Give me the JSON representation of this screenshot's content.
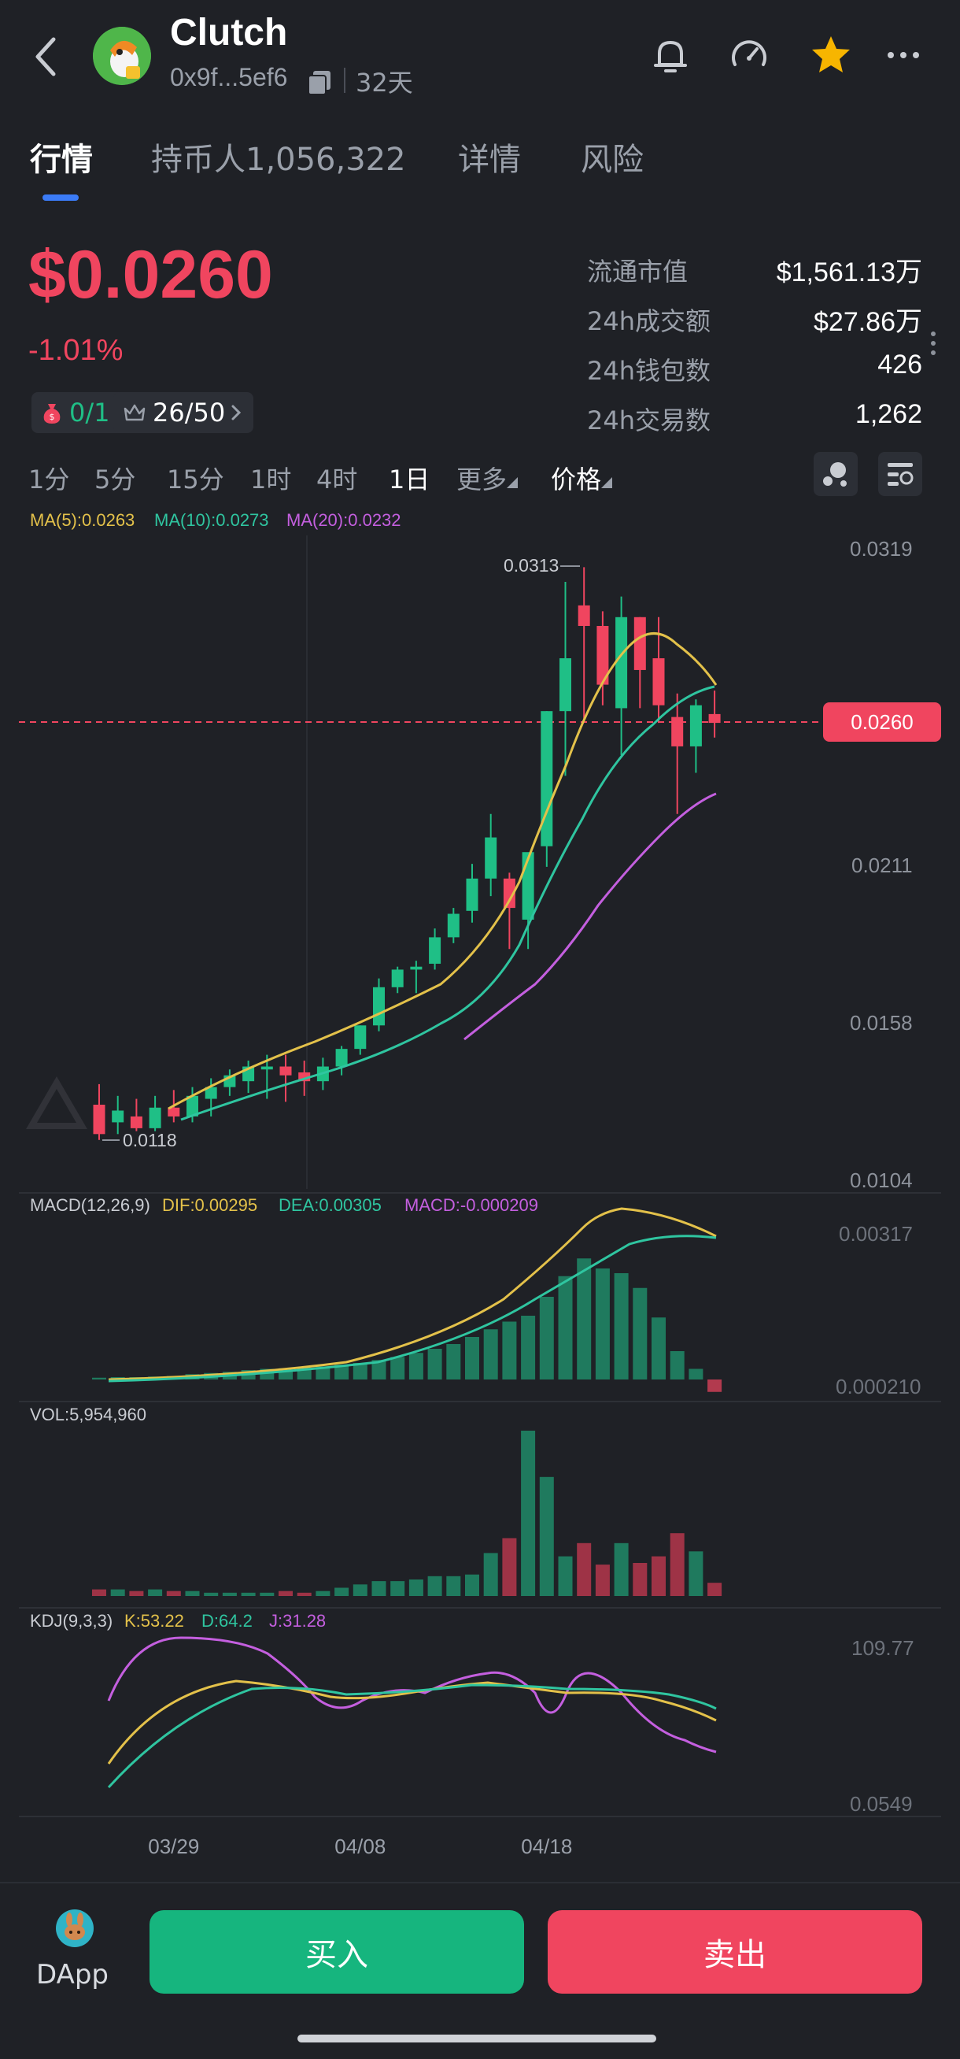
{
  "header": {
    "token_name": "Clutch",
    "address": "0x9f...5ef6",
    "age": "32天"
  },
  "tabs": [
    {
      "label": "行情",
      "active": true
    },
    {
      "label": "持币人1,056,322",
      "active": false
    },
    {
      "label": "详情",
      "active": false
    },
    {
      "label": "风险",
      "active": false
    }
  ],
  "price": {
    "value": "$0.0260",
    "change": "-1.01%"
  },
  "stats": [
    {
      "label": "流通市值",
      "value": "$1,561.13万"
    },
    {
      "label": "24h成交额",
      "value": "$27.86万"
    },
    {
      "label": "24h钱包数",
      "value": "426"
    },
    {
      "label": "24h交易数",
      "value": "1,262"
    }
  ],
  "badges": {
    "left": "0/1",
    "right": "26/50"
  },
  "timeframes": [
    "1分",
    "5分",
    "15分",
    "1时",
    "4时",
    "1日",
    "更多",
    "价格"
  ],
  "active_timeframe": "1日",
  "colors": {
    "up": "#1fbf86",
    "down": "#f0455f",
    "ma5": "#e3c14a",
    "ma10": "#2fc5a0",
    "ma20": "#c45fdf",
    "accent": "#3b7bf6"
  },
  "icons": [
    "chevron-left-icon",
    "bell-icon",
    "speedometer-icon",
    "star-icon",
    "more-icon",
    "copy-icon",
    "moneybag-icon",
    "crown-icon",
    "chevron-right-icon",
    "bubble-icon",
    "settings-sliders-icon",
    "pancake-bunny-icon"
  ],
  "chart_data": [
    {
      "type": "candlestick",
      "title": "",
      "indicator_text": {
        "ma5": "MA(5):0.0263",
        "ma10": "MA(10):0.0273",
        "ma20": "MA(20):0.0232"
      },
      "y_ticks": [
        "0.0319",
        "0.0211",
        "0.0158",
        "0.0104"
      ],
      "ylim": [
        0.0104,
        0.0319
      ],
      "annotations": {
        "high": "0.0313",
        "low": "0.0118",
        "last": "0.0260"
      },
      "x_ticks": [
        {
          "index": 4,
          "label": "03/29"
        },
        {
          "index": 14,
          "label": "04/08"
        },
        {
          "index": 24,
          "label": "04/18"
        }
      ],
      "candles": [
        {
          "o": 0.013,
          "h": 0.0137,
          "l": 0.0118,
          "c": 0.012
        },
        {
          "o": 0.0124,
          "h": 0.0133,
          "l": 0.012,
          "c": 0.0128
        },
        {
          "o": 0.0126,
          "h": 0.0132,
          "l": 0.0121,
          "c": 0.0122
        },
        {
          "o": 0.0122,
          "h": 0.0133,
          "l": 0.0121,
          "c": 0.0129
        },
        {
          "o": 0.0129,
          "h": 0.0135,
          "l": 0.0124,
          "c": 0.0126
        },
        {
          "o": 0.0126,
          "h": 0.0136,
          "l": 0.0124,
          "c": 0.0133
        },
        {
          "o": 0.0132,
          "h": 0.0139,
          "l": 0.0126,
          "c": 0.0136
        },
        {
          "o": 0.0136,
          "h": 0.0142,
          "l": 0.0133,
          "c": 0.014
        },
        {
          "o": 0.0138,
          "h": 0.0145,
          "l": 0.0134,
          "c": 0.0143
        },
        {
          "o": 0.0142,
          "h": 0.0147,
          "l": 0.0132,
          "c": 0.0143
        },
        {
          "o": 0.0143,
          "h": 0.0147,
          "l": 0.0131,
          "c": 0.014
        },
        {
          "o": 0.0141,
          "h": 0.0145,
          "l": 0.0133,
          "c": 0.0138
        },
        {
          "o": 0.0138,
          "h": 0.0146,
          "l": 0.0135,
          "c": 0.0143
        },
        {
          "o": 0.0143,
          "h": 0.015,
          "l": 0.014,
          "c": 0.0149
        },
        {
          "o": 0.0149,
          "h": 0.0157,
          "l": 0.0147,
          "c": 0.0157
        },
        {
          "o": 0.0157,
          "h": 0.0173,
          "l": 0.0155,
          "c": 0.017
        },
        {
          "o": 0.017,
          "h": 0.0177,
          "l": 0.0168,
          "c": 0.0176
        },
        {
          "o": 0.0176,
          "h": 0.0179,
          "l": 0.0168,
          "c": 0.0177
        },
        {
          "o": 0.0178,
          "h": 0.019,
          "l": 0.0176,
          "c": 0.0187
        },
        {
          "o": 0.0187,
          "h": 0.0197,
          "l": 0.0185,
          "c": 0.0195
        },
        {
          "o": 0.0196,
          "h": 0.0212,
          "l": 0.0192,
          "c": 0.0207
        },
        {
          "o": 0.0207,
          "h": 0.0229,
          "l": 0.0201,
          "c": 0.0221
        },
        {
          "o": 0.0207,
          "h": 0.0209,
          "l": 0.0183,
          "c": 0.0197
        },
        {
          "o": 0.0193,
          "h": 0.0214,
          "l": 0.0183,
          "c": 0.0216
        },
        {
          "o": 0.0218,
          "h": 0.0264,
          "l": 0.0211,
          "c": 0.0264
        },
        {
          "o": 0.0264,
          "h": 0.0308,
          "l": 0.0242,
          "c": 0.0282
        },
        {
          "o": 0.03,
          "h": 0.0313,
          "l": 0.026,
          "c": 0.0293
        },
        {
          "o": 0.0293,
          "h": 0.0298,
          "l": 0.0266,
          "c": 0.0273
        },
        {
          "o": 0.0265,
          "h": 0.0303,
          "l": 0.0249,
          "c": 0.0296
        },
        {
          "o": 0.0296,
          "h": 0.0296,
          "l": 0.0265,
          "c": 0.0278
        },
        {
          "o": 0.0282,
          "h": 0.0296,
          "l": 0.026,
          "c": 0.0266
        },
        {
          "o": 0.0262,
          "h": 0.027,
          "l": 0.0229,
          "c": 0.0252
        },
        {
          "o": 0.0252,
          "h": 0.0268,
          "l": 0.0243,
          "c": 0.0266
        },
        {
          "o": 0.0263,
          "h": 0.0271,
          "l": 0.0255,
          "c": 0.026
        }
      ]
    },
    {
      "type": "histogram",
      "title": "MACD(12,26,9)",
      "indicator_text": {
        "dif": "DIF:0.00295",
        "dea": "DEA:0.00305",
        "macd": "MACD:-0.000209"
      },
      "y_ticks": [
        "0.00317",
        "0.000210"
      ],
      "macd": [
        3e-05,
        4e-05,
        4e-05,
        5e-05,
        6e-05,
        9e-05,
        0.00011,
        0.00013,
        0.00016,
        0.00018,
        0.00019,
        0.0002,
        0.00022,
        0.00025,
        0.00028,
        0.00033,
        0.00038,
        0.00045,
        0.00052,
        0.0006,
        0.00072,
        0.00085,
        0.00098,
        0.00108,
        0.0014,
        0.00175,
        0.00205,
        0.00188,
        0.0018,
        0.00155,
        0.00105,
        0.00048,
        0.00018,
        -0.00021
      ]
    },
    {
      "type": "bar",
      "title": "VOL:5,954,960",
      "volume": [
        0.04,
        0.04,
        0.03,
        0.04,
        0.03,
        0.03,
        0.02,
        0.02,
        0.02,
        0.02,
        0.03,
        0.02,
        0.03,
        0.05,
        0.07,
        0.09,
        0.09,
        0.1,
        0.12,
        0.12,
        0.13,
        0.26,
        0.35,
        1.0,
        0.72,
        0.24,
        0.32,
        0.19,
        0.32,
        0.2,
        0.24,
        0.38,
        0.27,
        0.08
      ]
    },
    {
      "type": "line",
      "title": "KDJ(9,3,3)",
      "indicator_text": {
        "k": "K:53.22",
        "d": "D:64.2",
        "j": "J:31.28"
      },
      "y_ticks": [
        "109.77",
        "0.0549"
      ]
    }
  ]
}
